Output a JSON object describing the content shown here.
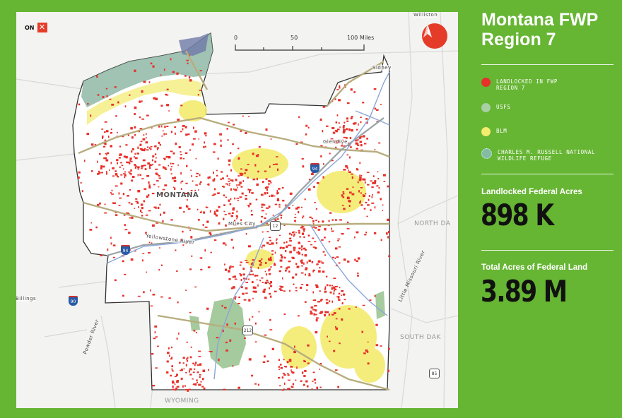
{
  "map": {
    "logo_text": "ON",
    "logo_mark": "✕",
    "compass_icon": "north-arrow-icon",
    "scale": {
      "labels": [
        "0",
        "50",
        "100 Miles"
      ]
    },
    "labels": {
      "state": "MONTANA",
      "north_dakota": "NORTH DA",
      "south_dakota": "SOUTH DAK",
      "wyoming": "WYOMING",
      "williston": "Williston",
      "billings": "Billings",
      "sidney": "Sidney",
      "glendive": "Glendive",
      "miles_city": "Miles City",
      "yellowstone_river": "Yellowstone River",
      "little_missouri": "Little Missouri River",
      "powder_river": "Powder River"
    },
    "shields": {
      "i94_a": "94",
      "i94_b": "94",
      "i94_c": "94",
      "us12": "12",
      "us212": "212",
      "us85": "85",
      "i90": "90"
    },
    "colors": {
      "landlocked": "#e8302a",
      "usfs": "#8fbf88",
      "blm": "#f0e862",
      "cmr": "#7ab29a",
      "background": "#66b533"
    }
  },
  "sidebar": {
    "title": "Montana FWP Region 7",
    "legend": [
      {
        "label": "LANDLOCKED IN FWP REGION 7",
        "color": "#e8302a"
      },
      {
        "label": "USFS",
        "color": "#a9cfa4"
      },
      {
        "label": "BLM",
        "color": "#f3ec6e"
      },
      {
        "label": "CHARLES M. RUSSELL NATIONAL WILDLIFE REFUGE",
        "color": "#86bba3"
      }
    ],
    "stats": [
      {
        "label": "Landlocked Federal Acres",
        "value": "898 K"
      },
      {
        "label": "Total Acres of Federal Land",
        "value": "3.89 M"
      }
    ]
  }
}
